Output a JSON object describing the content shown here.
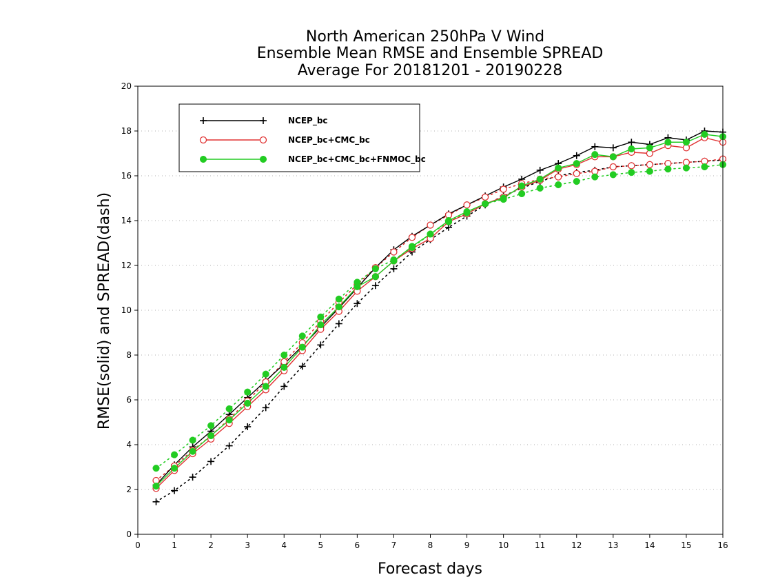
{
  "chart_data": {
    "type": "line",
    "title_lines": [
      "North American 250hPa V Wind",
      "Ensemble Mean RMSE and Ensemble SPREAD",
      "Average For 20181201 - 20190228"
    ],
    "xlabel": "Forecast days",
    "ylabel": "RMSE(solid) and SPREAD(dash)",
    "xlim": [
      0,
      16
    ],
    "ylim": [
      0,
      20
    ],
    "xticks": [
      0,
      1,
      2,
      3,
      4,
      5,
      6,
      7,
      8,
      9,
      10,
      11,
      12,
      13,
      14,
      15,
      16
    ],
    "yticks": [
      0,
      2,
      4,
      6,
      8,
      10,
      12,
      14,
      16,
      18,
      20
    ],
    "grid": true,
    "legend_position": "top-left",
    "x": [
      0.5,
      1,
      1.5,
      2,
      2.5,
      3,
      3.5,
      4,
      4.5,
      5,
      5.5,
      6,
      6.5,
      7,
      7.5,
      8,
      8.5,
      9,
      9.5,
      10,
      10.5,
      11,
      11.5,
      12,
      12.5,
      13,
      13.5,
      14,
      14.5,
      15,
      15.5,
      16
    ],
    "series": [
      {
        "name": "NCEP_bc",
        "color": "#000000",
        "marker": "plus",
        "rmse": [
          2.2,
          3.1,
          3.9,
          4.6,
          5.35,
          6.1,
          6.85,
          7.6,
          8.4,
          9.25,
          10.1,
          11.0,
          11.9,
          12.7,
          13.3,
          13.8,
          14.3,
          14.7,
          15.1,
          15.5,
          15.85,
          16.25,
          16.55,
          16.9,
          17.3,
          17.25,
          17.5,
          17.4,
          17.7,
          17.6,
          18.0,
          17.95
        ],
        "spread": [
          1.45,
          1.95,
          2.55,
          3.25,
          3.95,
          4.8,
          5.65,
          6.6,
          7.5,
          8.45,
          9.4,
          10.3,
          11.1,
          11.85,
          12.6,
          13.15,
          13.7,
          14.2,
          14.7,
          15.1,
          15.45,
          15.75,
          16.0,
          16.15,
          16.25,
          16.4,
          16.45,
          16.5,
          16.55,
          16.6,
          16.65,
          16.7
        ]
      },
      {
        "name": "NCEP_bc+CMC_bc",
        "color": "#e03030",
        "marker": "open-circle",
        "rmse": [
          2.05,
          2.85,
          3.6,
          4.25,
          4.95,
          5.7,
          6.45,
          7.3,
          8.2,
          9.15,
          9.95,
          10.85,
          11.5,
          12.2,
          12.75,
          13.2,
          13.95,
          14.3,
          14.75,
          15.05,
          15.5,
          15.8,
          16.3,
          16.5,
          16.85,
          16.85,
          17.05,
          17.0,
          17.35,
          17.25,
          17.7,
          17.5
        ],
        "spread": [
          2.4,
          3.05,
          3.75,
          4.4,
          5.15,
          5.95,
          6.8,
          7.7,
          8.55,
          9.5,
          10.35,
          11.15,
          11.9,
          12.6,
          13.25,
          13.8,
          14.25,
          14.7,
          15.05,
          15.4,
          15.65,
          15.85,
          15.95,
          16.1,
          16.2,
          16.4,
          16.45,
          16.5,
          16.55,
          16.6,
          16.65,
          16.75
        ]
      },
      {
        "name": "NCEP_bc+CMC_bc+FNMOC_bc",
        "color": "#22cc22",
        "marker": "filled-circle",
        "rmse": [
          2.15,
          2.95,
          3.7,
          4.4,
          5.1,
          5.85,
          6.6,
          7.45,
          8.35,
          9.35,
          10.15,
          11.05,
          11.5,
          12.2,
          12.85,
          13.4,
          14.0,
          14.4,
          14.75,
          15.0,
          15.55,
          15.85,
          16.35,
          16.55,
          16.95,
          16.85,
          17.2,
          17.25,
          17.5,
          17.5,
          17.85,
          17.75
        ],
        "spread": [
          2.95,
          3.55,
          4.2,
          4.85,
          5.6,
          6.35,
          7.15,
          8.0,
          8.85,
          9.7,
          10.5,
          11.25,
          11.85,
          12.25,
          12.8,
          13.4,
          13.95,
          14.35,
          14.75,
          14.95,
          15.2,
          15.45,
          15.6,
          15.75,
          15.95,
          16.05,
          16.15,
          16.2,
          16.3,
          16.35,
          16.4,
          16.5
        ]
      }
    ]
  }
}
